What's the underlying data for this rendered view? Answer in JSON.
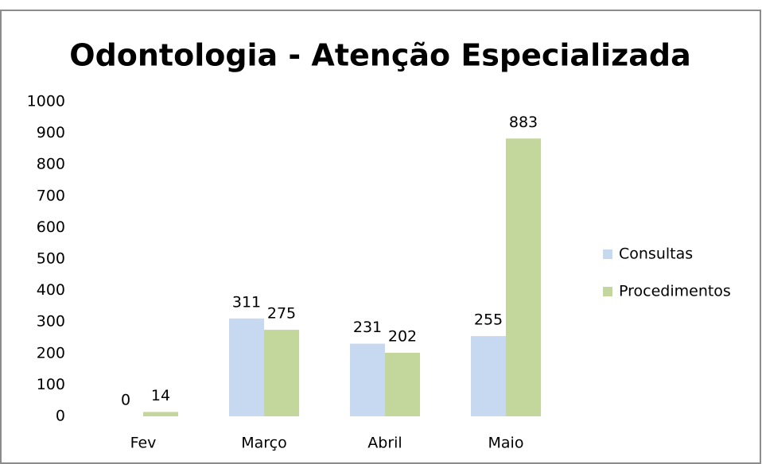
{
  "chart_data": {
    "type": "bar",
    "title": "Odontologia - Atenção Especializada",
    "categories": [
      "Fev",
      "Março",
      "Abril",
      "Maio"
    ],
    "series": [
      {
        "name": "Consultas",
        "color": "#c6d9f1",
        "values": [
          0,
          311,
          231,
          255
        ]
      },
      {
        "name": "Procedimentos",
        "color": "#c3d69b",
        "values": [
          14,
          275,
          202,
          883
        ]
      }
    ],
    "ylim": [
      0,
      1000
    ],
    "yticks": [
      0,
      100,
      200,
      300,
      400,
      500,
      600,
      700,
      800,
      900,
      1000
    ],
    "legend": "right"
  }
}
